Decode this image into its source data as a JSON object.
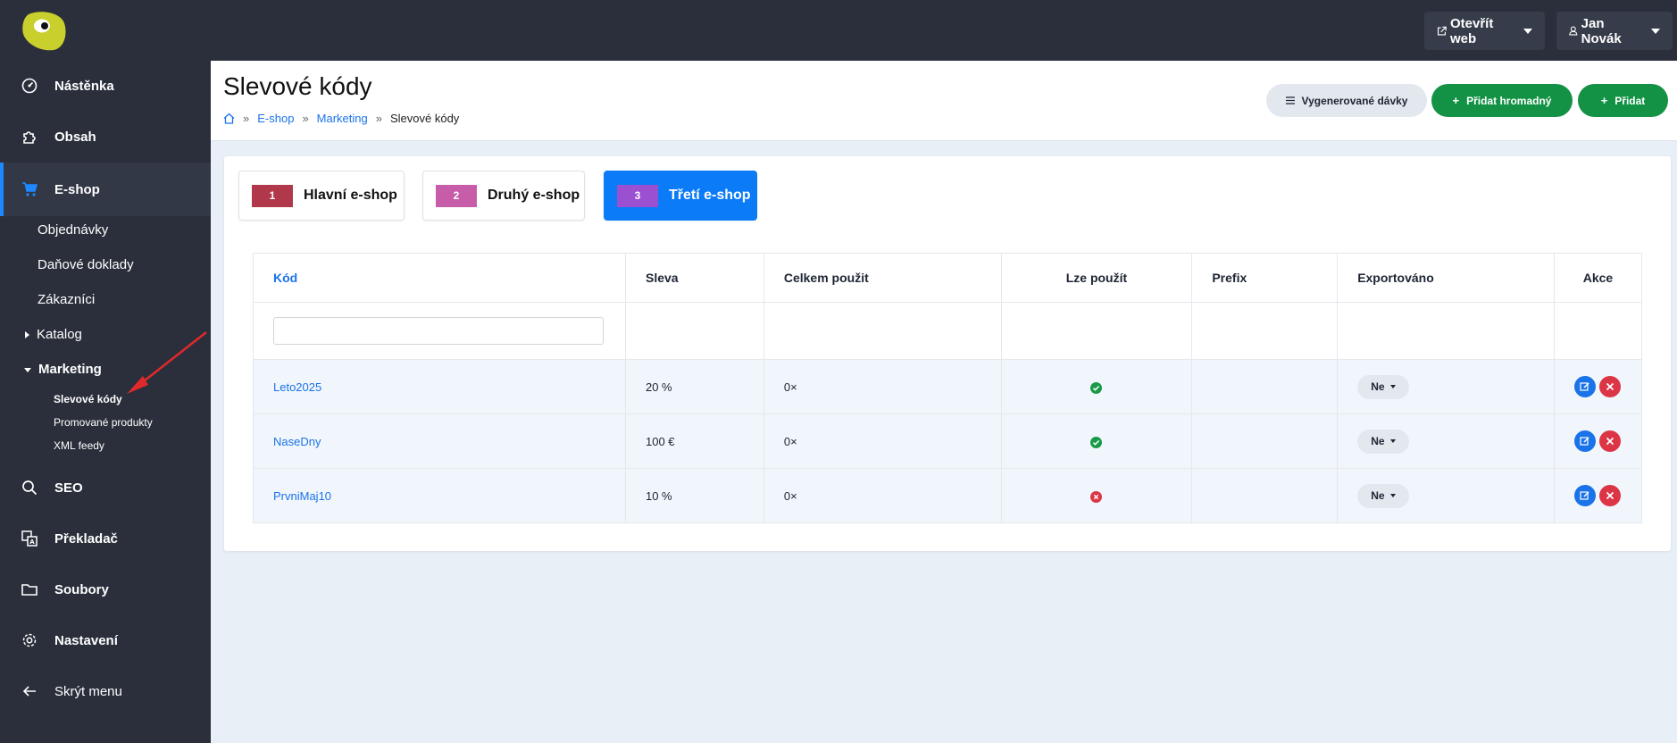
{
  "topbar": {
    "open_web_label": "Otevřít web",
    "user_label": "Jan Novák"
  },
  "sidebar": {
    "items": {
      "dashboard": "Nástěnka",
      "content": "Obsah",
      "eshop": "E-shop",
      "seo": "SEO",
      "translator": "Překladač",
      "files": "Soubory",
      "settings": "Nastavení",
      "hide_menu": "Skrýt menu"
    },
    "eshop_sub": {
      "orders": "Objednávky",
      "tax_docs": "Daňové doklady",
      "customers": "Zákazníci",
      "catalog": "Katalog",
      "marketing": "Marketing"
    },
    "marketing_sub": {
      "discount_codes": "Slevové kódy",
      "promoted_products": "Promované produkty",
      "xml_feeds": "XML feedy"
    }
  },
  "header": {
    "title": "Slevové kódy",
    "breadcrumb": {
      "eshop": "E-shop",
      "marketing": "Marketing",
      "current": "Slevové kódy",
      "sep": "»"
    },
    "buttons": {
      "batches": "Vygenerované dávky",
      "add_bulk": "Přidat hromadný",
      "add": "Přidat"
    }
  },
  "shops": [
    {
      "num": "1",
      "label": "Hlavní e-shop",
      "color": "#b0384a"
    },
    {
      "num": "2",
      "label": "Druhý e-shop",
      "color": "#c75ca8"
    },
    {
      "num": "3",
      "label": "Třetí e-shop",
      "color": "#9b4fd1"
    }
  ],
  "table": {
    "headers": {
      "code": "Kód",
      "discount": "Sleva",
      "total_used": "Celkem použit",
      "usable": "Lze použít",
      "prefix": "Prefix",
      "exported": "Exportováno",
      "actions": "Akce"
    },
    "filter_placeholder": "",
    "rows": [
      {
        "code": "Leto2025",
        "discount": "20 %",
        "used": "0×",
        "usable": true,
        "prefix": "",
        "exported": "Ne"
      },
      {
        "code": "NaseDny",
        "discount": "100 €",
        "used": "0×",
        "usable": true,
        "prefix": "",
        "exported": "Ne"
      },
      {
        "code": "PrvniMaj10",
        "discount": "10 %",
        "used": "0×",
        "usable": false,
        "prefix": "",
        "exported": "Ne"
      }
    ]
  },
  "colors": {
    "accent": "#1a73e8",
    "success": "#1a9a48",
    "danger": "#dc3545",
    "green_button": "#139245",
    "sidebar_bg": "#2a2f3b"
  }
}
